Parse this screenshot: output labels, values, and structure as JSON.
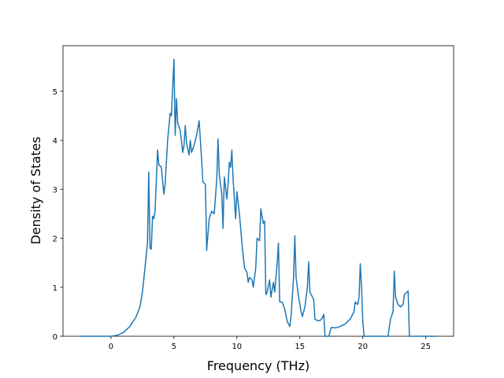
{
  "chart_data": {
    "type": "line",
    "x_label": "Frequency (THz)",
    "y_label": "Density of States",
    "x": [
      -2.4,
      0,
      0.5,
      1,
      1.5,
      2,
      2.3,
      2.5,
      2.7,
      2.9,
      3.0,
      3.1,
      3.2,
      3.3,
      3.4,
      3.5,
      3.7,
      3.8,
      4.0,
      4.2,
      4.3,
      4.5,
      4.7,
      4.8,
      5.0,
      5.1,
      5.2,
      5.3,
      5.5,
      5.7,
      5.8,
      5.9,
      6.0,
      6.2,
      6.3,
      6.4,
      6.6,
      6.8,
      7.0,
      7.2,
      7.3,
      7.5,
      7.6,
      7.8,
      8.0,
      8.2,
      8.4,
      8.5,
      8.6,
      8.8,
      8.9,
      9.0,
      9.2,
      9.3,
      9.4,
      9.5,
      9.6,
      9.7,
      9.9,
      10.0,
      10.2,
      10.4,
      10.6,
      10.8,
      10.9,
      11.0,
      11.2,
      11.3,
      11.5,
      11.6,
      11.8,
      11.9,
      12.1,
      12.2,
      12.3,
      12.4,
      12.6,
      12.7,
      12.9,
      13.0,
      13.2,
      13.3,
      13.4,
      13.6,
      13.8,
      14.0,
      14.2,
      14.3,
      14.5,
      14.6,
      14.7,
      14.9,
      15.1,
      15.2,
      15.4,
      15.6,
      15.7,
      15.8,
      16.0,
      16.1,
      16.2,
      16.4,
      16.6,
      16.8,
      16.9,
      17.0,
      17.3,
      17.5,
      17.8,
      18.2,
      18.6,
      19.0,
      19.3,
      19.4,
      19.6,
      19.7,
      19.8,
      19.9,
      20.0,
      20.1,
      22.0,
      22.2,
      22.4,
      22.5,
      22.6,
      22.8,
      23.0,
      23.2,
      23.3,
      23.5,
      23.6,
      23.7,
      25.8
    ],
    "series": [
      {
        "color": "#1f77b4",
        "values": [
          0,
          0,
          0.02,
          0.08,
          0.2,
          0.4,
          0.6,
          0.9,
          1.4,
          1.9,
          3.35,
          1.8,
          1.78,
          2.45,
          2.4,
          2.55,
          3.8,
          3.5,
          3.45,
          2.9,
          3.1,
          4.0,
          4.55,
          4.5,
          5.65,
          4.1,
          4.85,
          4.35,
          4.2,
          3.75,
          3.9,
          4.3,
          3.95,
          3.7,
          4.0,
          3.75,
          3.9,
          4.1,
          4.4,
          3.6,
          3.15,
          3.1,
          1.75,
          2.4,
          2.55,
          2.5,
          3.2,
          4.03,
          3.3,
          2.9,
          2.2,
          3.25,
          2.8,
          3.1,
          3.55,
          3.45,
          3.8,
          3.2,
          2.4,
          2.95,
          2.5,
          1.9,
          1.4,
          1.3,
          1.1,
          1.2,
          1.15,
          1.0,
          1.4,
          2.0,
          1.95,
          2.6,
          2.3,
          2.35,
          0.85,
          0.9,
          1.15,
          0.8,
          1.1,
          0.9,
          1.5,
          1.9,
          0.7,
          0.7,
          0.55,
          0.3,
          0.2,
          0.4,
          1.2,
          2.05,
          1.2,
          0.8,
          0.5,
          0.4,
          0.6,
          1.0,
          1.52,
          0.9,
          0.8,
          0.75,
          0.35,
          0.32,
          0.32,
          0.38,
          0.45,
          0,
          0,
          0.18,
          0.17,
          0.2,
          0.25,
          0.35,
          0.5,
          0.7,
          0.65,
          0.8,
          1.48,
          1.0,
          0.3,
          0,
          0,
          0.35,
          0.5,
          1.33,
          0.8,
          0.65,
          0.6,
          0.65,
          0.85,
          0.9,
          0.92,
          0,
          0
        ]
      }
    ],
    "xlim": [
      -3.81,
      27.21
    ],
    "xticks": [
      0,
      5,
      10,
      15,
      20,
      25
    ],
    "ylim": [
      0,
      5.93
    ],
    "yticks": [
      0,
      1,
      2,
      3,
      4,
      5
    ]
  }
}
